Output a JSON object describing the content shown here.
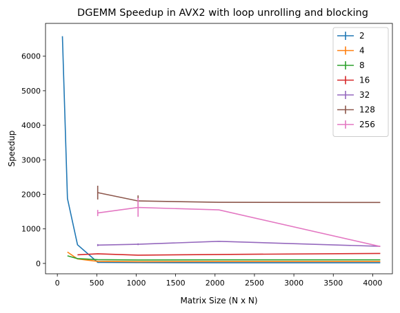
{
  "chart_data": {
    "type": "line",
    "title": "DGEMM Speedup in AVX2 with loop unrolling and blocking",
    "xlabel": "Matrix Size (N x N)",
    "ylabel": "Speedup",
    "xlim": [
      -150,
      4250
    ],
    "ylim": [
      -300,
      6950
    ],
    "xticks": [
      0,
      500,
      1000,
      1500,
      2000,
      2500,
      3000,
      3500,
      4000
    ],
    "yticks": [
      0,
      1000,
      2000,
      3000,
      4000,
      5000,
      6000
    ],
    "grid": false,
    "legend_position": "top-right",
    "series": [
      {
        "name": "2",
        "color": "#1f77b4",
        "x": [
          64,
          128,
          256,
          512,
          1024,
          2048,
          4096
        ],
        "y": [
          6580,
          1880,
          540,
          30,
          25,
          20,
          20
        ],
        "err": [
          0,
          0,
          0,
          0,
          0,
          0,
          0
        ]
      },
      {
        "name": "4",
        "color": "#ff7f0e",
        "x": [
          128,
          256,
          512,
          1024,
          2048,
          4096
        ],
        "y": [
          330,
          130,
          60,
          50,
          55,
          55
        ],
        "err": [
          0,
          0,
          0,
          0,
          0,
          0
        ]
      },
      {
        "name": "8",
        "color": "#2ca02c",
        "x": [
          128,
          256,
          512,
          1024,
          2048,
          4096
        ],
        "y": [
          220,
          140,
          110,
          100,
          105,
          105
        ],
        "err": [
          0,
          0,
          0,
          0,
          0,
          0
        ]
      },
      {
        "name": "16",
        "color": "#d62728",
        "x": [
          256,
          512,
          1024,
          2048,
          4096
        ],
        "y": [
          250,
          280,
          240,
          260,
          290
        ],
        "err": [
          0,
          0,
          0,
          0,
          0
        ]
      },
      {
        "name": "32",
        "color": "#9467bd",
        "x": [
          512,
          1024,
          2048,
          4096
        ],
        "y": [
          530,
          555,
          640,
          495
        ],
        "err": [
          30,
          25,
          0,
          0
        ]
      },
      {
        "name": "128",
        "color": "#8c564b",
        "x": [
          512,
          1024,
          2048,
          4096
        ],
        "y": [
          2050,
          1810,
          1770,
          1765
        ],
        "err": [
          200,
          160,
          0,
          0
        ]
      },
      {
        "name": "256",
        "color": "#e377c2",
        "x": [
          512,
          1024,
          2048,
          4096
        ],
        "y": [
          1460,
          1620,
          1550,
          490
        ],
        "err": [
          90,
          270,
          0,
          0
        ]
      }
    ]
  }
}
